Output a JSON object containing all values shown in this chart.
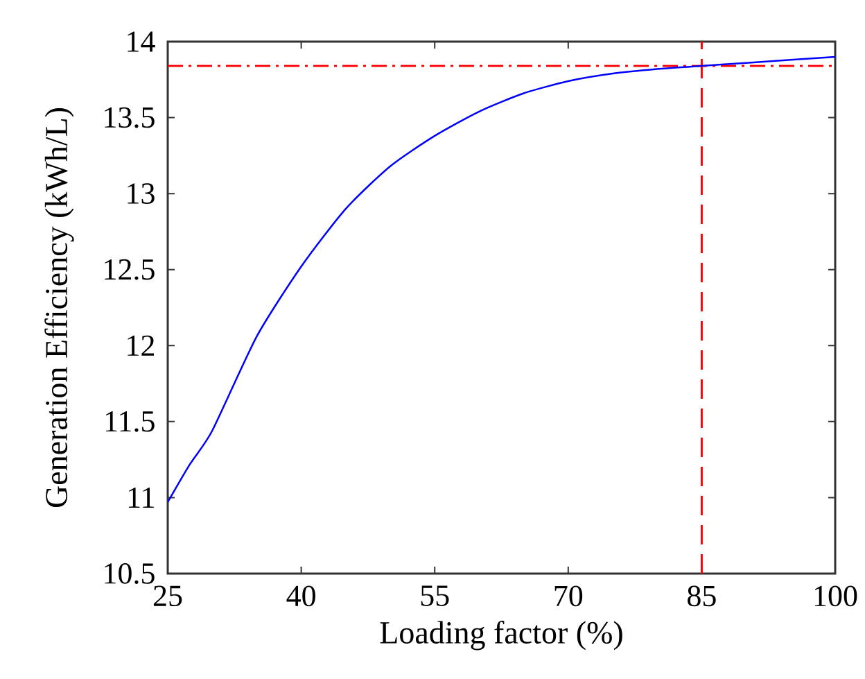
{
  "chart_data": {
    "type": "line",
    "xlabel": "Loading factor (%)",
    "ylabel": "Generation Efficiency (kWh/L)",
    "x": [
      25,
      27.5,
      30,
      35,
      40,
      45,
      50,
      55,
      60,
      65,
      70,
      75,
      80,
      85,
      90,
      95,
      100
    ],
    "series": [
      {
        "color": "#0000ff",
        "values": [
          10.97,
          11.22,
          11.44,
          12.06,
          12.52,
          12.9,
          13.18,
          13.38,
          13.54,
          13.66,
          13.74,
          13.79,
          13.82,
          13.84,
          13.86,
          13.88,
          13.9
        ]
      }
    ],
    "xlim": [
      25,
      100
    ],
    "ylim": [
      10.5,
      14
    ],
    "xticks": [
      25,
      40,
      55,
      70,
      85,
      100
    ],
    "yticks": [
      10.5,
      11,
      11.5,
      12,
      12.5,
      13,
      13.5,
      14
    ],
    "ref_lines": [
      {
        "axis": "y",
        "value": 13.84,
        "color": "#ff0000",
        "line_style": "dashdot"
      },
      {
        "axis": "x",
        "value": 85,
        "color": "#ff0000",
        "line_style": "dashed"
      }
    ],
    "grid": false,
    "marker": "none",
    "line_style": "solid"
  }
}
